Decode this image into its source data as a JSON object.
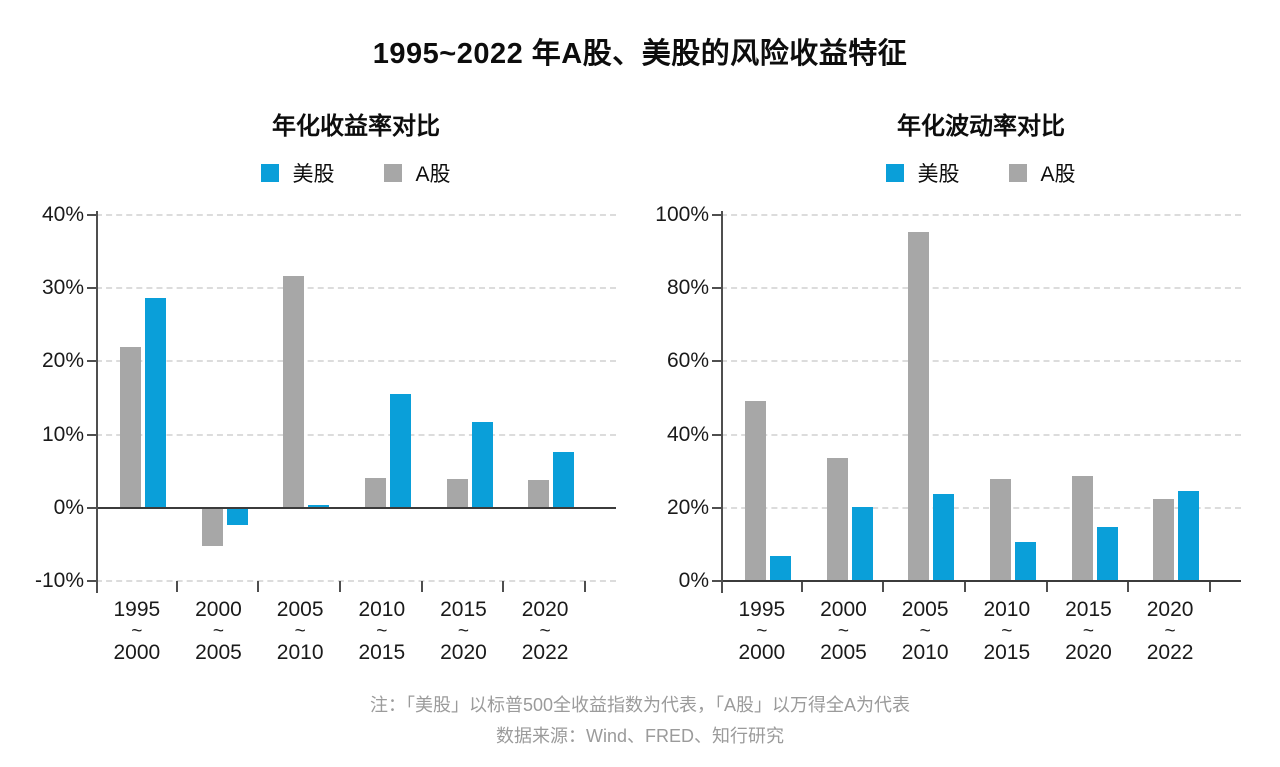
{
  "page": {
    "title": "1995~2022 年A股、美股的风险收益特征",
    "notes": [
      "注：「美股」以标普500全收益指数为代表，「A股」以万得全A为代表",
      "数据来源：Wind、FRED、知行研究"
    ]
  },
  "colors": {
    "us_blue": "#0a9fd9",
    "ashare_gray": "#a7a7a7",
    "gridline": "#dcdcdc",
    "axis": "#4f4f4f",
    "zero_line": "#3b3b3b",
    "note_gray": "#9b9b9b"
  },
  "legend": [
    {
      "id": "us",
      "label": "美股",
      "color": "#0a9fd9"
    },
    {
      "id": "ashare",
      "label": "A股",
      "color": "#a7a7a7"
    }
  ],
  "chart_data": [
    {
      "type": "bar",
      "title": "年化收益率对比",
      "unit": "%",
      "categories": [
        "1995~2000",
        "2000~2005",
        "2005~2010",
        "2010~2015",
        "2015~2020",
        "2020~2022"
      ],
      "series": [
        {
          "id": "ashare",
          "name": "A股",
          "color": "#a7a7a7",
          "values": [
            21.9,
            -5.2,
            31.6,
            4.1,
            4.0,
            3.8
          ]
        },
        {
          "id": "us",
          "name": "美股",
          "color": "#0a9fd9",
          "values": [
            28.6,
            -2.4,
            0.4,
            15.5,
            11.7,
            7.6
          ]
        }
      ],
      "ylim": [
        -10,
        40
      ],
      "yticks": [
        40,
        30,
        20,
        10,
        0,
        -10
      ],
      "grid": "dashed-horizontal",
      "legend_position": "top"
    },
    {
      "type": "bar",
      "title": "年化波动率对比",
      "unit": "%",
      "categories": [
        "1995~2000",
        "2000~2005",
        "2005~2010",
        "2010~2015",
        "2015~2020",
        "2020~2022"
      ],
      "series": [
        {
          "id": "ashare",
          "name": "A股",
          "color": "#a7a7a7",
          "values": [
            49.2,
            33.5,
            95.3,
            27.9,
            28.6,
            22.4
          ]
        },
        {
          "id": "us",
          "name": "美股",
          "color": "#0a9fd9",
          "values": [
            6.8,
            20.3,
            23.9,
            10.7,
            14.7,
            24.5
          ]
        }
      ],
      "ylim": [
        0,
        100
      ],
      "yticks": [
        100,
        80,
        60,
        40,
        20,
        0
      ],
      "grid": "dashed-horizontal",
      "legend_position": "top"
    }
  ]
}
